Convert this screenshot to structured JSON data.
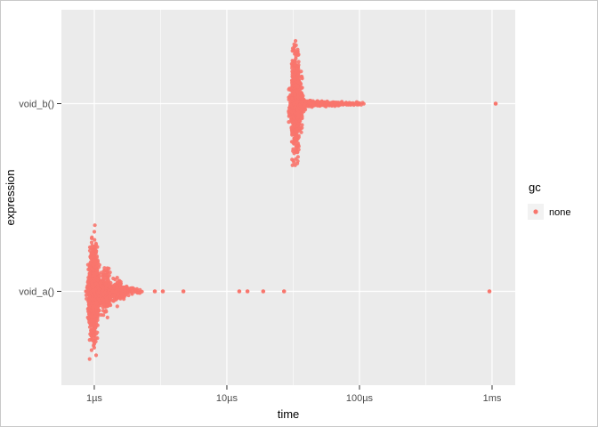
{
  "chart_data": {
    "type": "scatter",
    "variant": "beeswarm",
    "title": "",
    "xlabel": "time",
    "ylabel": "expression",
    "x_scale": "log10",
    "x_unit": "microseconds",
    "x_domain_us": [
      0.565,
      1495
    ],
    "x_ticks": [
      {
        "value": 1,
        "label": "1µs"
      },
      {
        "value": 10,
        "label": "10µs"
      },
      {
        "value": 100,
        "label": "100µs"
      },
      {
        "value": 1000,
        "label": "1ms"
      }
    ],
    "x_minor_breaks_us": [
      3.162,
      31.62,
      316.2
    ],
    "categories": [
      "void_b()",
      "void_a()"
    ],
    "legend": {
      "title": "gc",
      "entries": [
        {
          "label": "none",
          "color": "#F8766D"
        }
      ]
    },
    "style": {
      "panel_bg": "#EBEBEB",
      "grid_color": "#FFFFFF",
      "point_color": "#F8766D",
      "tick_color": "#333333",
      "tick_label_color": "#4d4d4d",
      "legend_key_bg": "#F2F2F2"
    },
    "clusters_format": "[time_us, point_count, vertical_spread_px]",
    "groups": [
      {
        "expression": "void_a()",
        "gc": "none",
        "clusters_us": [
          [
            0.9,
            25,
            10
          ],
          [
            0.93,
            120,
            45
          ],
          [
            0.96,
            260,
            80
          ],
          [
            0.99,
            270,
            83
          ],
          [
            1.02,
            190,
            70
          ],
          [
            1.05,
            100,
            45
          ],
          [
            1.08,
            55,
            24
          ],
          [
            1.12,
            50,
            20
          ],
          [
            1.16,
            65,
            30
          ],
          [
            1.21,
            85,
            40
          ],
          [
            1.27,
            70,
            33
          ],
          [
            1.34,
            40,
            16
          ],
          [
            1.43,
            48,
            20
          ],
          [
            1.53,
            36,
            15
          ],
          [
            1.63,
            26,
            11
          ],
          [
            1.75,
            18,
            8
          ],
          [
            1.9,
            12,
            6
          ],
          [
            2.05,
            8,
            5
          ],
          [
            2.2,
            5,
            4
          ]
        ],
        "isolated_points_us": [
          2.86,
          3.29,
          4.7,
          12.4,
          14.3,
          18.8,
          27,
          955
        ]
      },
      {
        "expression": "void_b()",
        "gc": "none",
        "clusters_us": [
          [
            30.5,
            50,
            28
          ],
          [
            32,
            300,
            78
          ],
          [
            33.5,
            300,
            80
          ],
          [
            35.5,
            130,
            45
          ],
          [
            37.5,
            70,
            10
          ],
          [
            40,
            55,
            5
          ],
          [
            43,
            48,
            5
          ],
          [
            46.5,
            42,
            4
          ],
          [
            50,
            38,
            4
          ],
          [
            54,
            34,
            4
          ],
          [
            58,
            30,
            3.5
          ],
          [
            63,
            26,
            3.5
          ],
          [
            68,
            22,
            3
          ],
          [
            74,
            18,
            3
          ],
          [
            80,
            14,
            3
          ],
          [
            87,
            10,
            2.5
          ],
          [
            94,
            7,
            2.5
          ],
          [
            101,
            4,
            2
          ],
          [
            108,
            2,
            2
          ]
        ],
        "isolated_points_us": [
          1064
        ]
      }
    ]
  }
}
